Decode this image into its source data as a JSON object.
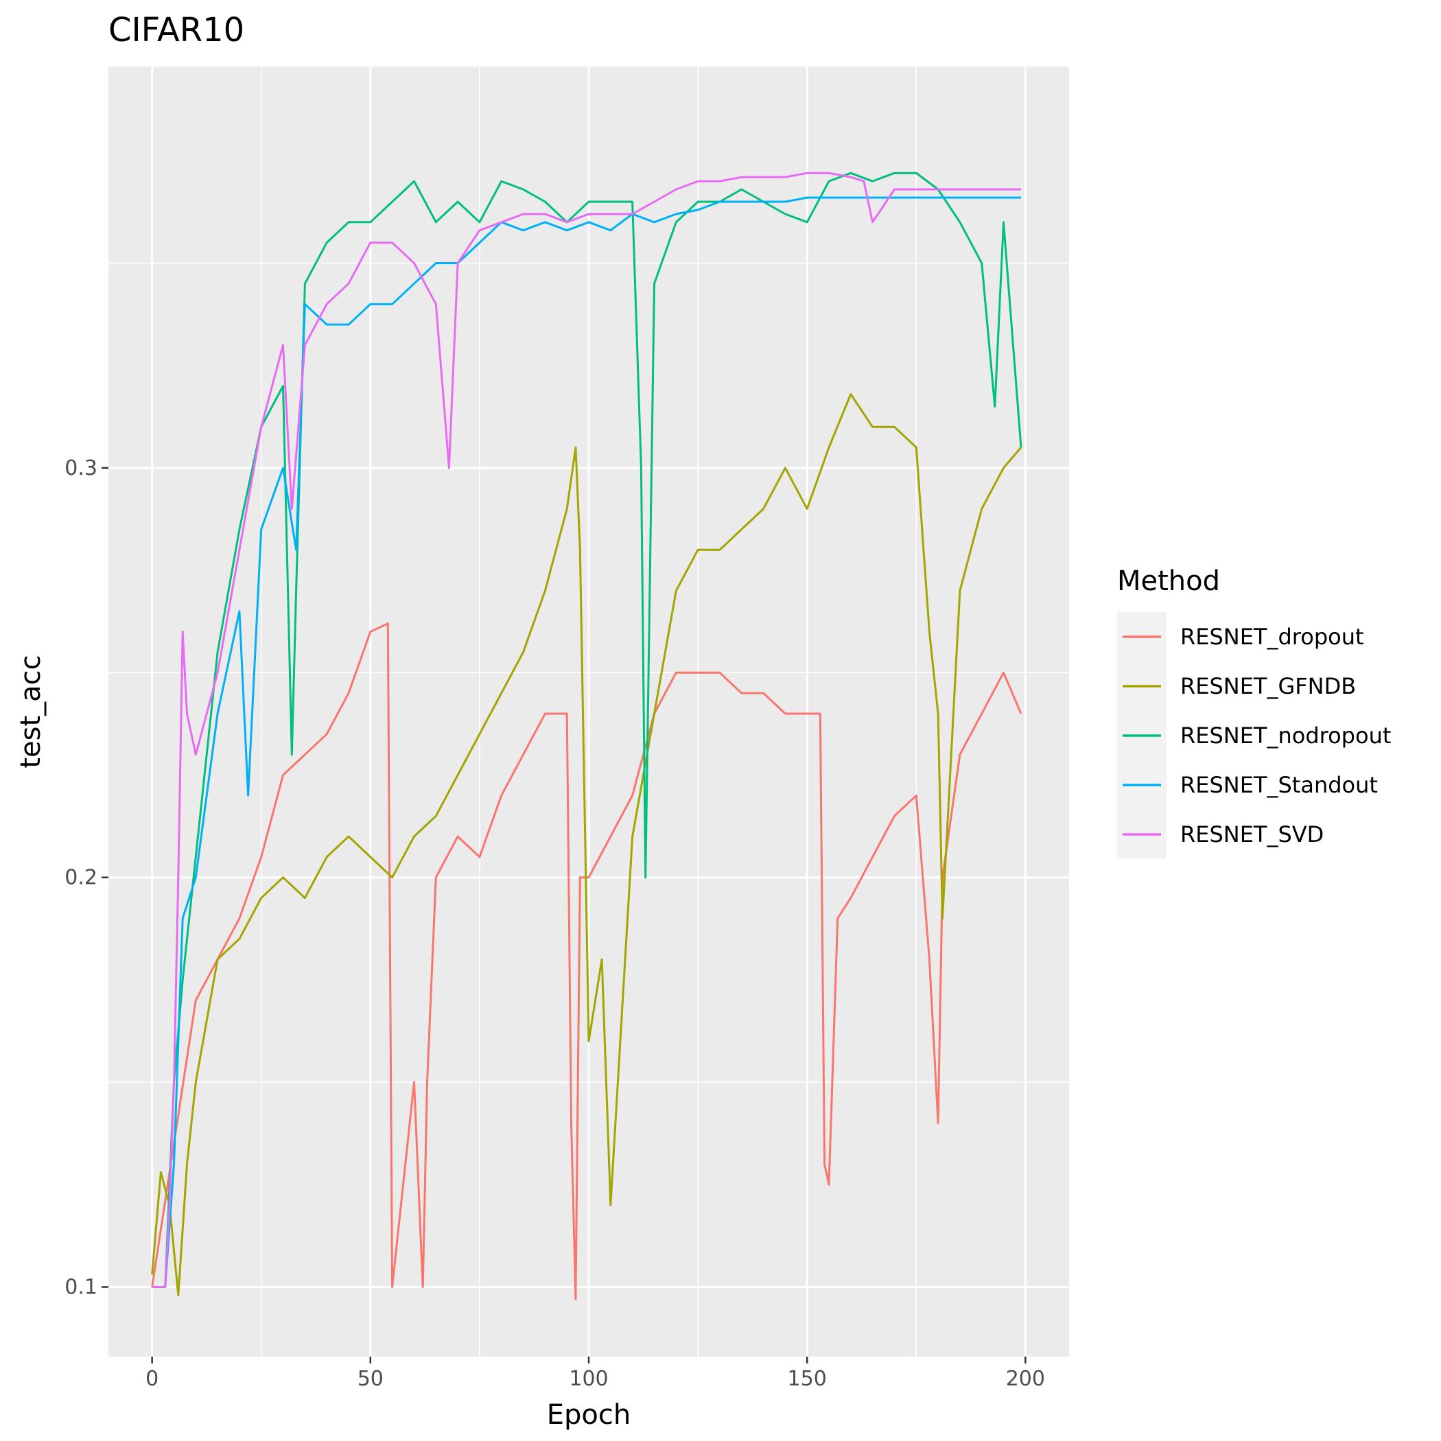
{
  "chart_data": {
    "type": "line",
    "title": "CIFAR10",
    "xlabel": "Epoch",
    "ylabel": "test_acc",
    "xlim": [
      -10,
      210
    ],
    "ylim": [
      0.083,
      0.398
    ],
    "x_ticks": [
      0,
      50,
      100,
      150,
      200
    ],
    "y_ticks": [
      0.1,
      0.2,
      0.3
    ],
    "x_tick_labels": [
      "0",
      "50",
      "100",
      "150",
      "200"
    ],
    "y_tick_labels": [
      "0.1",
      "0.2",
      "0.3"
    ],
    "grid": true,
    "legend": {
      "title": "Method",
      "position": "right"
    },
    "series": [
      {
        "name": "RESNET_dropout",
        "color": "#F8766D",
        "x": [
          0,
          5,
          10,
          15,
          20,
          25,
          30,
          35,
          40,
          45,
          50,
          54,
          55,
          60,
          62,
          63,
          65,
          70,
          75,
          80,
          85,
          90,
          95,
          96,
          97,
          98,
          100,
          105,
          110,
          115,
          120,
          125,
          130,
          135,
          140,
          145,
          150,
          153,
          154,
          155,
          157,
          160,
          165,
          170,
          175,
          178,
          180,
          181,
          185,
          190,
          195,
          199
        ],
        "y": [
          0.1,
          0.135,
          0.17,
          0.18,
          0.19,
          0.205,
          0.225,
          0.23,
          0.235,
          0.245,
          0.26,
          0.262,
          0.1,
          0.15,
          0.1,
          0.15,
          0.2,
          0.21,
          0.205,
          0.22,
          0.23,
          0.24,
          0.24,
          0.14,
          0.097,
          0.2,
          0.2,
          0.21,
          0.22,
          0.24,
          0.25,
          0.25,
          0.25,
          0.245,
          0.245,
          0.24,
          0.24,
          0.24,
          0.13,
          0.125,
          0.19,
          0.195,
          0.205,
          0.215,
          0.22,
          0.18,
          0.14,
          0.2,
          0.23,
          0.24,
          0.25,
          0.24
        ]
      },
      {
        "name": "RESNET_GFNDB",
        "color": "#A3A500",
        "x": [
          0,
          2,
          4,
          6,
          8,
          10,
          15,
          20,
          25,
          30,
          35,
          40,
          45,
          50,
          55,
          60,
          65,
          70,
          75,
          80,
          85,
          90,
          95,
          97,
          98,
          100,
          103,
          105,
          110,
          115,
          120,
          125,
          130,
          135,
          140,
          145,
          150,
          155,
          160,
          165,
          170,
          175,
          178,
          180,
          181,
          185,
          190,
          195,
          199
        ],
        "y": [
          0.103,
          0.128,
          0.12,
          0.098,
          0.13,
          0.15,
          0.18,
          0.185,
          0.195,
          0.2,
          0.195,
          0.205,
          0.21,
          0.205,
          0.2,
          0.21,
          0.215,
          0.225,
          0.235,
          0.245,
          0.255,
          0.27,
          0.29,
          0.305,
          0.28,
          0.16,
          0.18,
          0.12,
          0.21,
          0.24,
          0.27,
          0.28,
          0.28,
          0.285,
          0.29,
          0.3,
          0.29,
          0.305,
          0.318,
          0.31,
          0.31,
          0.305,
          0.26,
          0.24,
          0.19,
          0.27,
          0.29,
          0.3,
          0.305
        ]
      },
      {
        "name": "RESNET_nodropout",
        "color": "#00BF7D",
        "x": [
          0,
          3,
          5,
          7,
          10,
          15,
          20,
          25,
          30,
          32,
          33,
          35,
          40,
          45,
          50,
          55,
          60,
          65,
          70,
          75,
          80,
          85,
          90,
          95,
          100,
          105,
          110,
          112,
          113,
          115,
          120,
          125,
          130,
          135,
          140,
          145,
          150,
          155,
          160,
          165,
          170,
          175,
          180,
          185,
          190,
          193,
          195,
          199
        ],
        "y": [
          0.1,
          0.1,
          0.15,
          0.175,
          0.205,
          0.255,
          0.285,
          0.31,
          0.32,
          0.23,
          0.27,
          0.345,
          0.355,
          0.36,
          0.36,
          0.365,
          0.37,
          0.36,
          0.365,
          0.36,
          0.37,
          0.368,
          0.365,
          0.36,
          0.365,
          0.365,
          0.365,
          0.3,
          0.2,
          0.345,
          0.36,
          0.365,
          0.365,
          0.368,
          0.365,
          0.362,
          0.36,
          0.37,
          0.372,
          0.37,
          0.372,
          0.372,
          0.368,
          0.36,
          0.35,
          0.315,
          0.36,
          0.305
        ]
      },
      {
        "name": "RESNET_Standout",
        "color": "#00B0F6",
        "x": [
          0,
          3,
          5,
          7,
          10,
          15,
          20,
          22,
          25,
          30,
          33,
          35,
          40,
          45,
          50,
          55,
          60,
          65,
          70,
          75,
          80,
          85,
          90,
          95,
          100,
          105,
          110,
          115,
          120,
          125,
          130,
          135,
          140,
          145,
          150,
          155,
          160,
          165,
          170,
          175,
          180,
          185,
          190,
          195,
          199
        ],
        "y": [
          0.1,
          0.1,
          0.13,
          0.19,
          0.2,
          0.24,
          0.265,
          0.22,
          0.285,
          0.3,
          0.28,
          0.34,
          0.335,
          0.335,
          0.34,
          0.34,
          0.345,
          0.35,
          0.35,
          0.355,
          0.36,
          0.358,
          0.36,
          0.358,
          0.36,
          0.358,
          0.362,
          0.36,
          0.362,
          0.363,
          0.365,
          0.365,
          0.365,
          0.365,
          0.366,
          0.366,
          0.366,
          0.366,
          0.366,
          0.366,
          0.366,
          0.366,
          0.366,
          0.366,
          0.366
        ]
      },
      {
        "name": "RESNET_SVD",
        "color": "#E76BF3",
        "x": [
          0,
          3,
          4,
          5,
          6,
          7,
          8,
          10,
          15,
          20,
          25,
          30,
          32,
          35,
          40,
          45,
          50,
          55,
          60,
          65,
          68,
          70,
          75,
          80,
          85,
          90,
          95,
          100,
          105,
          110,
          115,
          120,
          125,
          130,
          135,
          140,
          145,
          150,
          155,
          160,
          163,
          165,
          170,
          175,
          180,
          185,
          190,
          195,
          199
        ],
        "y": [
          0.1,
          0.1,
          0.12,
          0.15,
          0.2,
          0.26,
          0.24,
          0.23,
          0.25,
          0.28,
          0.31,
          0.33,
          0.29,
          0.33,
          0.34,
          0.345,
          0.355,
          0.355,
          0.35,
          0.34,
          0.3,
          0.35,
          0.358,
          0.36,
          0.362,
          0.362,
          0.36,
          0.362,
          0.362,
          0.362,
          0.365,
          0.368,
          0.37,
          0.37,
          0.371,
          0.371,
          0.371,
          0.372,
          0.372,
          0.371,
          0.37,
          0.36,
          0.368,
          0.368,
          0.368,
          0.368,
          0.368,
          0.368,
          0.368
        ]
      }
    ]
  }
}
